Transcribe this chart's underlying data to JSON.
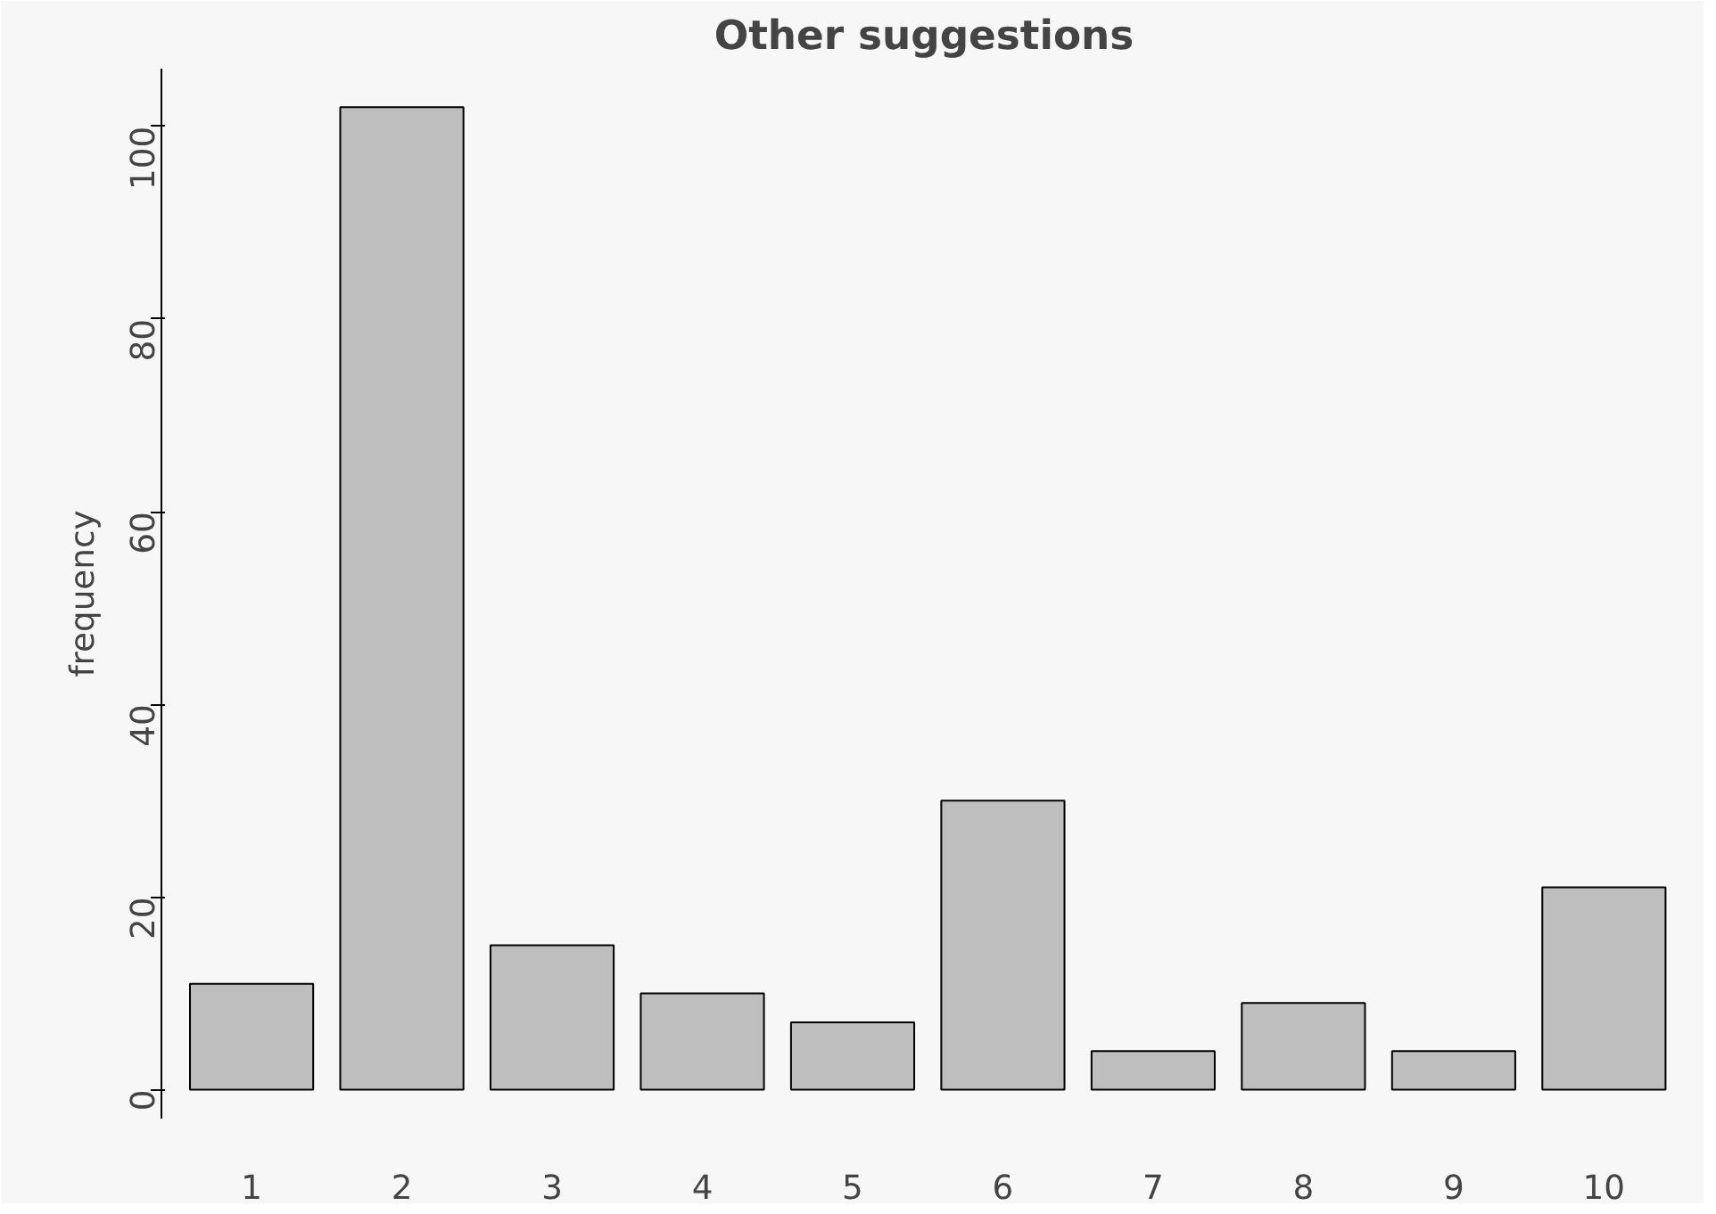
{
  "chart_data": {
    "type": "bar",
    "title": "Other suggestions",
    "ylabel": "frequency",
    "categories": [
      "1",
      "2",
      "3",
      "4",
      "5",
      "6",
      "7",
      "8",
      "9",
      "10"
    ],
    "values": [
      11,
      102,
      15,
      10,
      7,
      30,
      4,
      9,
      4,
      21
    ],
    "color": "#bebebe",
    "ylim": [
      -3,
      106
    ],
    "yticks": [
      0,
      20,
      40,
      60,
      80,
      100
    ],
    "grid": false
  }
}
